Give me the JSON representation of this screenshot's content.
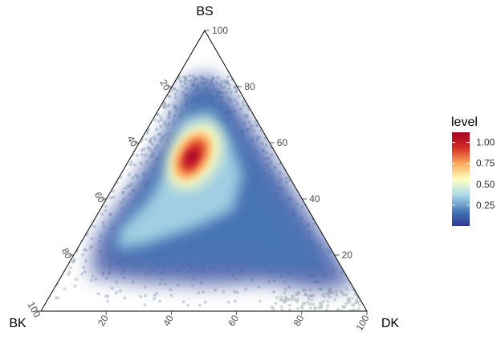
{
  "chart_data": {
    "type": "ternary-density",
    "title": "",
    "axes": [
      {
        "name": "BS",
        "ticks": [
          20,
          40,
          60,
          80,
          100
        ]
      },
      {
        "name": "DK",
        "ticks": [
          20,
          40,
          60,
          80,
          100
        ]
      },
      {
        "name": "BK",
        "ticks": [
          20,
          40,
          60,
          80,
          100
        ]
      }
    ],
    "density_peak": {
      "BS": 55,
      "DK": 20,
      "BK": 25,
      "level": 1.1
    },
    "legend": {
      "title": "level",
      "ticks": [
        "1.00",
        "0.75",
        "0.50",
        "0.25"
      ],
      "tick_values": [
        1.0,
        0.75,
        0.5,
        0.25
      ],
      "range": [
        0,
        1.12
      ],
      "colors": [
        "#313695",
        "#4575b4",
        "#abd9e9",
        "#ffffbf",
        "#fdae61",
        "#d73027",
        "#a50026"
      ],
      "placement": "right"
    },
    "point_color": "#9aa9ba"
  }
}
